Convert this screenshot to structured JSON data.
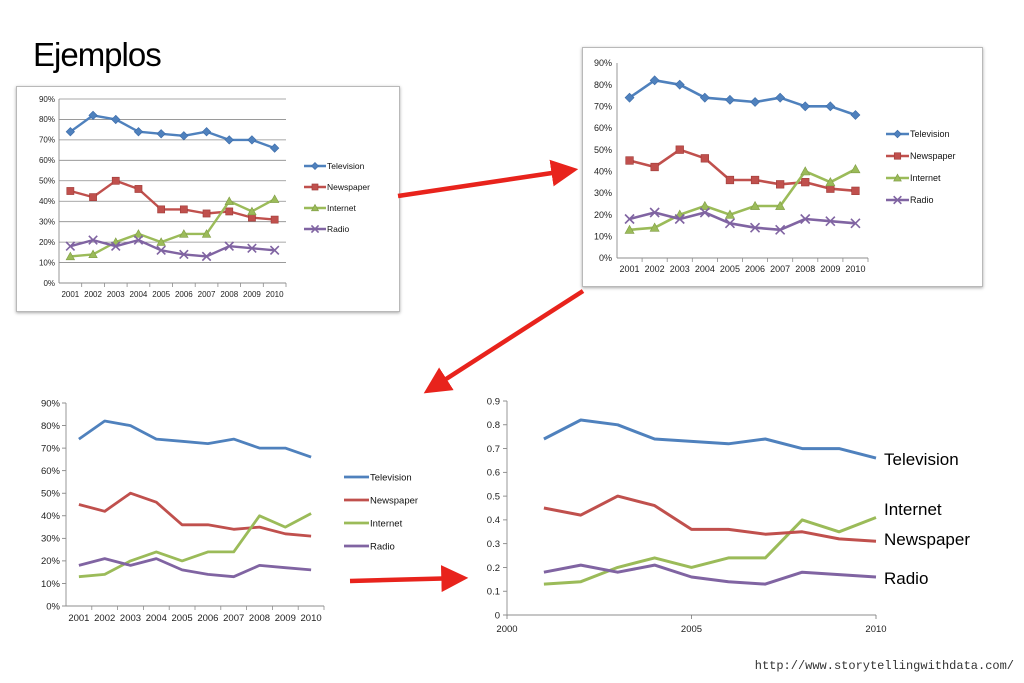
{
  "slide": {
    "title": "Ejemplos",
    "source": "http://www.storytellingwithdata.com/"
  },
  "colors": {
    "Television": "#4f81bd",
    "Newspaper": "#c0504d",
    "Internet": "#9bbb59",
    "Radio": "#8064a2",
    "arrow": "#e8231c"
  },
  "chart_data": [
    {
      "type": "line",
      "style": "excel-default-markers-gridlines",
      "x": [
        2001,
        2002,
        2003,
        2004,
        2005,
        2006,
        2007,
        2008,
        2009,
        2010
      ],
      "x_tick_labels": [
        "2001",
        "2002",
        "2003",
        "2004",
        "2005",
        "2006",
        "2007",
        "2008",
        "2009",
        "2010"
      ],
      "y_tick_labels": [
        "0%",
        "10%",
        "20%",
        "30%",
        "40%",
        "50%",
        "60%",
        "70%",
        "80%",
        "90%"
      ],
      "ylim": [
        0,
        0.9
      ],
      "grid": true,
      "legend": "right",
      "series": [
        {
          "name": "Television",
          "values": [
            0.74,
            0.82,
            0.8,
            0.74,
            0.73,
            0.72,
            0.74,
            0.7,
            0.7,
            0.66
          ],
          "marker": "diamond"
        },
        {
          "name": "Newspaper",
          "values": [
            0.45,
            0.42,
            0.5,
            0.46,
            0.36,
            0.36,
            0.34,
            0.35,
            0.32,
            0.31
          ],
          "marker": "square"
        },
        {
          "name": "Internet",
          "values": [
            0.13,
            0.14,
            0.2,
            0.24,
            0.2,
            0.24,
            0.24,
            0.4,
            0.35,
            0.41
          ],
          "marker": "triangle"
        },
        {
          "name": "Radio",
          "values": [
            0.18,
            0.21,
            0.18,
            0.21,
            0.16,
            0.14,
            0.13,
            0.18,
            0.17,
            0.16
          ],
          "marker": "x"
        }
      ]
    },
    {
      "type": "line",
      "style": "no-gridlines",
      "x": [
        2001,
        2002,
        2003,
        2004,
        2005,
        2006,
        2007,
        2008,
        2009,
        2010
      ],
      "x_tick_labels": [
        "2001",
        "2002",
        "2003",
        "2004",
        "2005",
        "2006",
        "2007",
        "2008",
        "2009",
        "2010"
      ],
      "y_tick_labels": [
        "0%",
        "10%",
        "20%",
        "30%",
        "40%",
        "50%",
        "60%",
        "70%",
        "80%",
        "90%"
      ],
      "ylim": [
        0,
        0.9
      ],
      "grid": false,
      "legend": "right",
      "series": [
        {
          "name": "Television",
          "values": [
            0.74,
            0.82,
            0.8,
            0.74,
            0.73,
            0.72,
            0.74,
            0.7,
            0.7,
            0.66
          ],
          "marker": "diamond"
        },
        {
          "name": "Newspaper",
          "values": [
            0.45,
            0.42,
            0.5,
            0.46,
            0.36,
            0.36,
            0.34,
            0.35,
            0.32,
            0.31
          ],
          "marker": "square"
        },
        {
          "name": "Internet",
          "values": [
            0.13,
            0.14,
            0.2,
            0.24,
            0.2,
            0.24,
            0.24,
            0.4,
            0.35,
            0.41
          ],
          "marker": "triangle"
        },
        {
          "name": "Radio",
          "values": [
            0.18,
            0.21,
            0.18,
            0.21,
            0.16,
            0.14,
            0.13,
            0.18,
            0.17,
            0.16
          ],
          "marker": "x"
        }
      ]
    },
    {
      "type": "line",
      "style": "no-markers",
      "x": [
        2001,
        2002,
        2003,
        2004,
        2005,
        2006,
        2007,
        2008,
        2009,
        2010
      ],
      "x_tick_labels": [
        "2001",
        "2002",
        "2003",
        "2004",
        "2005",
        "2006",
        "2007",
        "2008",
        "2009",
        "2010"
      ],
      "y_tick_labels": [
        "0%",
        "10%",
        "20%",
        "30%",
        "40%",
        "50%",
        "60%",
        "70%",
        "80%",
        "90%"
      ],
      "ylim": [
        0,
        0.9
      ],
      "grid": false,
      "legend": "right",
      "series": [
        {
          "name": "Television",
          "values": [
            0.74,
            0.82,
            0.8,
            0.74,
            0.73,
            0.72,
            0.74,
            0.7,
            0.7,
            0.66
          ]
        },
        {
          "name": "Newspaper",
          "values": [
            0.45,
            0.42,
            0.5,
            0.46,
            0.36,
            0.36,
            0.34,
            0.35,
            0.32,
            0.31
          ]
        },
        {
          "name": "Internet",
          "values": [
            0.13,
            0.14,
            0.2,
            0.24,
            0.2,
            0.24,
            0.24,
            0.4,
            0.35,
            0.41
          ]
        },
        {
          "name": "Radio",
          "values": [
            0.18,
            0.21,
            0.18,
            0.21,
            0.16,
            0.14,
            0.13,
            0.18,
            0.17,
            0.16
          ]
        }
      ]
    },
    {
      "type": "line",
      "style": "direct-labels",
      "x": [
        2001,
        2002,
        2003,
        2004,
        2005,
        2006,
        2007,
        2008,
        2009,
        2010
      ],
      "x_tick_labels": [
        "2000",
        "2005",
        "2010"
      ],
      "x_tick_values": [
        2000,
        2005,
        2010
      ],
      "xlim": [
        2000,
        2010
      ],
      "y_tick_labels": [
        "0",
        "0.1",
        "0.2",
        "0.3",
        "0.4",
        "0.5",
        "0.6",
        "0.7",
        "0.8",
        "0.9"
      ],
      "ylim": [
        0,
        0.9
      ],
      "grid": false,
      "legend": "direct-labels-at-line-ends",
      "series": [
        {
          "name": "Television",
          "values": [
            0.74,
            0.82,
            0.8,
            0.74,
            0.73,
            0.72,
            0.74,
            0.7,
            0.7,
            0.66
          ]
        },
        {
          "name": "Internet",
          "values": [
            0.13,
            0.14,
            0.2,
            0.24,
            0.2,
            0.24,
            0.24,
            0.4,
            0.35,
            0.41
          ]
        },
        {
          "name": "Newspaper",
          "values": [
            0.45,
            0.42,
            0.5,
            0.46,
            0.36,
            0.36,
            0.34,
            0.35,
            0.32,
            0.31
          ]
        },
        {
          "name": "Radio",
          "values": [
            0.18,
            0.21,
            0.18,
            0.21,
            0.16,
            0.14,
            0.13,
            0.18,
            0.17,
            0.16
          ]
        }
      ]
    }
  ]
}
